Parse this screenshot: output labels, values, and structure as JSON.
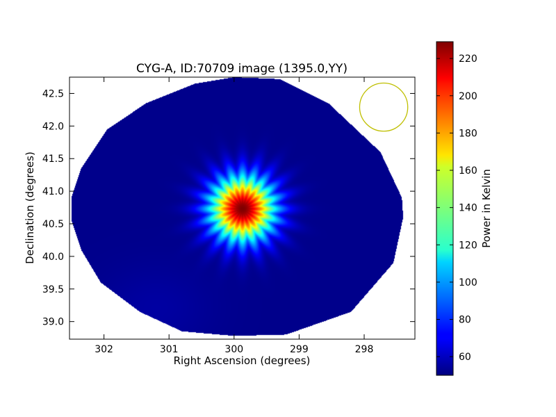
{
  "chart_data": {
    "type": "heatmap",
    "title": "CYG-A, ID:70709 image (1395.0,YY)",
    "xlabel": "Right Ascension (degrees)",
    "ylabel": "Declination (degrees)",
    "xlim": [
      302.53,
      297.22
    ],
    "ylim": [
      38.73,
      42.75
    ],
    "xticks": [
      302,
      301,
      300,
      299,
      298
    ],
    "yticks": [
      39.0,
      39.5,
      40.0,
      40.5,
      41.0,
      41.5,
      42.0,
      42.5
    ],
    "ytick_labels": [
      "39.0",
      "39.5",
      "40.0",
      "40.5",
      "41.0",
      "41.5",
      "42.0",
      "42.5"
    ],
    "colormap": "jet",
    "colorbar": {
      "label": "Power in Kelvin",
      "range": [
        50,
        229
      ],
      "ticks": [
        60,
        80,
        100,
        120,
        140,
        160,
        180,
        200,
        220
      ]
    },
    "source": {
      "name": "CYG-A",
      "ra": 299.87,
      "dec": 40.73,
      "peak": 229,
      "halo_radius_deg": 0.75,
      "spokes": 20
    },
    "background_level": 52,
    "mask_polygon_radec": [
      [
        300.0,
        42.75
      ],
      [
        299.3,
        42.72
      ],
      [
        298.55,
        42.35
      ],
      [
        297.75,
        41.6
      ],
      [
        297.42,
        40.9
      ],
      [
        297.4,
        40.6
      ],
      [
        297.55,
        39.9
      ],
      [
        298.2,
        39.15
      ],
      [
        299.2,
        38.8
      ],
      [
        300.0,
        38.78
      ],
      [
        300.8,
        38.85
      ],
      [
        301.45,
        39.15
      ],
      [
        302.05,
        39.6
      ],
      [
        302.35,
        40.1
      ],
      [
        302.5,
        40.55
      ],
      [
        302.5,
        40.9
      ],
      [
        302.35,
        41.35
      ],
      [
        301.95,
        41.95
      ],
      [
        301.35,
        42.35
      ],
      [
        300.6,
        42.65
      ]
    ],
    "beam_circle": {
      "ra": 297.7,
      "dec": 42.29,
      "radius_deg": 0.37,
      "color": "#bfbf00"
    }
  }
}
